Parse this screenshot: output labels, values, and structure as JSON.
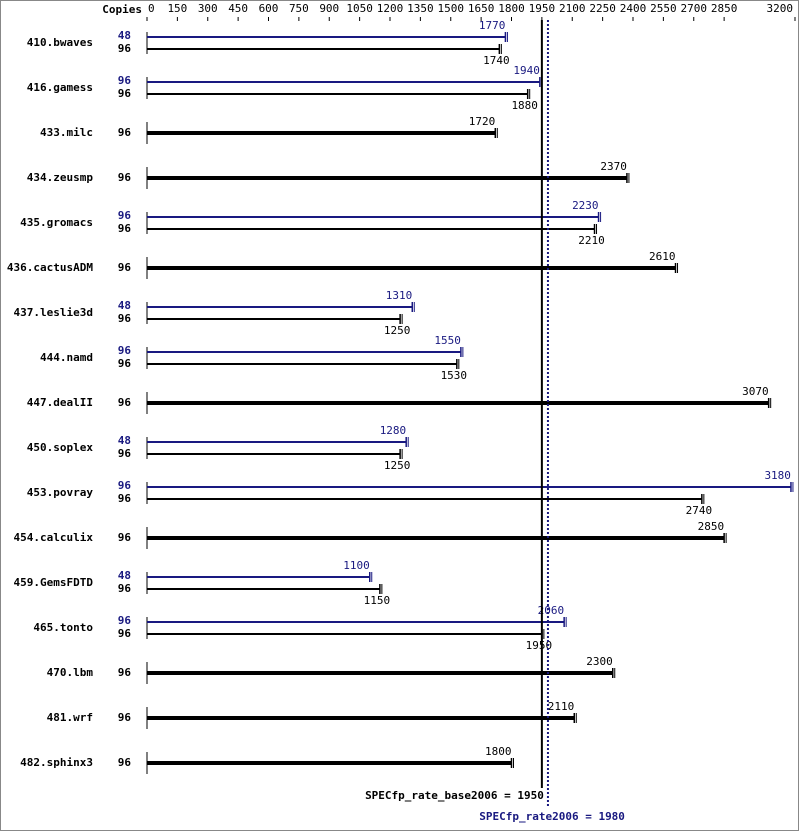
{
  "chart_data": {
    "type": "bar",
    "copies_label": "Copies",
    "xlim": [
      0,
      3200
    ],
    "xticks": [
      0,
      150,
      300,
      450,
      600,
      750,
      900,
      1050,
      1200,
      1350,
      1500,
      1650,
      1800,
      1950,
      2100,
      2250,
      2400,
      2550,
      2700,
      2850,
      3200
    ],
    "base_color": "#000000",
    "peak_color": "#191980",
    "benchmarks": [
      {
        "name": "410.bwaves",
        "peak": {
          "copies": 48,
          "value": 1770
        },
        "base": {
          "copies": 96,
          "value": 1740
        }
      },
      {
        "name": "416.gamess",
        "peak": {
          "copies": 96,
          "value": 1940
        },
        "base": {
          "copies": 96,
          "value": 1880
        }
      },
      {
        "name": "433.milc",
        "base": {
          "copies": 96,
          "value": 1720
        }
      },
      {
        "name": "434.zeusmp",
        "base": {
          "copies": 96,
          "value": 2370
        }
      },
      {
        "name": "435.gromacs",
        "peak": {
          "copies": 96,
          "value": 2230
        },
        "base": {
          "copies": 96,
          "value": 2210
        }
      },
      {
        "name": "436.cactusADM",
        "base": {
          "copies": 96,
          "value": 2610
        }
      },
      {
        "name": "437.leslie3d",
        "peak": {
          "copies": 48,
          "value": 1310
        },
        "base": {
          "copies": 96,
          "value": 1250
        }
      },
      {
        "name": "444.namd",
        "peak": {
          "copies": 96,
          "value": 1550
        },
        "base": {
          "copies": 96,
          "value": 1530
        }
      },
      {
        "name": "447.dealII",
        "base": {
          "copies": 96,
          "value": 3070
        }
      },
      {
        "name": "450.soplex",
        "peak": {
          "copies": 48,
          "value": 1280
        },
        "base": {
          "copies": 96,
          "value": 1250
        }
      },
      {
        "name": "453.povray",
        "peak": {
          "copies": 96,
          "value": 3180
        },
        "base": {
          "copies": 96,
          "value": 2740
        }
      },
      {
        "name": "454.calculix",
        "base": {
          "copies": 96,
          "value": 2850
        }
      },
      {
        "name": "459.GemsFDTD",
        "peak": {
          "copies": 48,
          "value": 1100
        },
        "base": {
          "copies": 96,
          "value": 1150
        }
      },
      {
        "name": "465.tonto",
        "peak": {
          "copies": 96,
          "value": 2060
        },
        "base": {
          "copies": 96,
          "value": 1950
        }
      },
      {
        "name": "470.lbm",
        "base": {
          "copies": 96,
          "value": 2300
        }
      },
      {
        "name": "481.wrf",
        "base": {
          "copies": 96,
          "value": 2110
        }
      },
      {
        "name": "482.sphinx3",
        "base": {
          "copies": 96,
          "value": 1800
        }
      }
    ],
    "base_result": {
      "label": "SPECfp_rate_base2006 = 1950",
      "value": 1950
    },
    "peak_result": {
      "label": "SPECfp_rate2006 = 1980",
      "value": 1980
    }
  }
}
